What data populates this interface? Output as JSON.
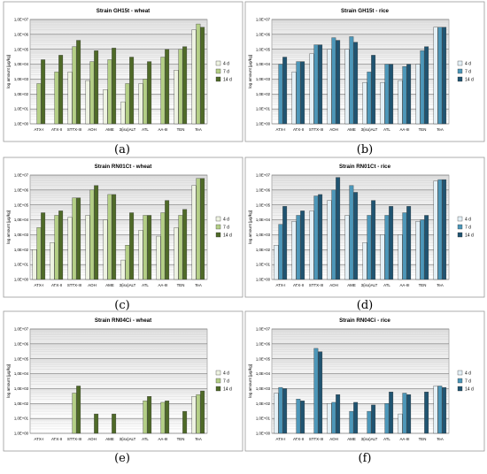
{
  "colors": {
    "wheat": [
      "#eef3e2",
      "#b4cf86",
      "#4f6a28"
    ],
    "rice": [
      "#e4f0f6",
      "#4d97b9",
      "#205471"
    ],
    "grid": "#c8c8c8",
    "plot_bg_top": "#e6e6e6",
    "plot_bg_bottom": "#ffffff"
  },
  "panels": [
    {
      "label": "(a)",
      "chart_data": {
        "type": "bar",
        "title": "Strain GH15t - wheat",
        "ylabel": "log amount [µg/kg]",
        "yscale": "log",
        "ylim_exp": [
          0,
          7
        ],
        "yticks": [
          "1,0E+00",
          "1,0E+01",
          "1,0E+02",
          "1,0E+03",
          "1,0E+04",
          "1,0E+05",
          "1,0E+06",
          "1,0E+07"
        ],
        "categories": [
          "ATX-I",
          "ATX-II",
          "STTX-III",
          "AOH",
          "AME",
          "3(iso)ALT",
          "ATL",
          "AA-III",
          "TEN",
          "TeA"
        ],
        "legend": [
          "4 d",
          "7 d",
          "14 d"
        ],
        "series": [
          {
            "name": "4 d",
            "values": [
              null,
              null,
              3000,
              800,
              200,
              30,
              500,
              null,
              4000,
              2000000
            ]
          },
          {
            "name": "7 d",
            "values": [
              500,
              3000,
              150000,
              15000,
              20000,
              500,
              1000,
              30000,
              100000,
              5000000
            ]
          },
          {
            "name": "14 d",
            "values": [
              20000,
              40000,
              400000,
              80000,
              120000,
              30000,
              15000,
              100000,
              150000,
              3000000
            ]
          }
        ]
      }
    },
    {
      "label": "(b)",
      "chart_data": {
        "type": "bar",
        "title": "Strain GH15t - rice",
        "ylabel": "log amount [µg/kg]",
        "yscale": "log",
        "ylim_exp": [
          0,
          7
        ],
        "yticks": [
          "1,0E+00",
          "1,0E+01",
          "1,0E+02",
          "1,0E+03",
          "1,0E+04",
          "1,0E+05",
          "1,0E+06",
          "1,0E+07"
        ],
        "categories": [
          "ATX-I",
          "ATX-II",
          "STTX-III",
          "AOH",
          "AME",
          "3(iso)ALT",
          "ATL",
          "AA-III",
          "TEN",
          "TeA"
        ],
        "legend": [
          "4 d",
          "7 d",
          "14 d"
        ],
        "series": [
          {
            "name": "4 d",
            "values": [
              null,
              3000,
              50000,
              100000,
              100000,
              600,
              600,
              800,
              10000,
              3000000
            ]
          },
          {
            "name": "7 d",
            "values": [
              10000,
              15000,
              200000,
              600000,
              700000,
              3000,
              10000,
              7000,
              80000,
              3000000
            ]
          },
          {
            "name": "14 d",
            "values": [
              30000,
              15000,
              200000,
              400000,
              300000,
              40000,
              10000,
              10000,
              150000,
              3000000
            ]
          }
        ]
      }
    },
    {
      "label": "(c)",
      "chart_data": {
        "type": "bar",
        "title": "Strain RN01Ct - wheat",
        "ylabel": "log amount [µg/kg]",
        "yscale": "log",
        "ylim_exp": [
          0,
          7
        ],
        "yticks": [
          "1,0E+00",
          "1,0E+01",
          "1,0E+02",
          "1,0E+03",
          "1,0E+04",
          "1,0E+05",
          "1,0E+06",
          "1,0E+07"
        ],
        "categories": [
          "ATX-I",
          "ATX-II",
          "STTX-III",
          "AOH",
          "AME",
          "3(iso)ALT",
          "ATL",
          "AA-III",
          "TEN",
          "TeA"
        ],
        "legend": [
          "4 d",
          "7 d",
          "14 d"
        ],
        "series": [
          {
            "name": "4 d",
            "values": [
              100,
              300,
              15000,
              20000,
              10000,
              20,
              2000,
              800,
              3000,
              2000000
            ]
          },
          {
            "name": "7 d",
            "values": [
              3000,
              20000,
              300000,
              1000000,
              500000,
              200,
              20000,
              30000,
              20000,
              6000000
            ]
          },
          {
            "name": "14 d",
            "values": [
              30000,
              40000,
              300000,
              2000000,
              500000,
              30000,
              20000,
              200000,
              50000,
              6000000
            ]
          }
        ]
      }
    },
    {
      "label": "(d)",
      "chart_data": {
        "type": "bar",
        "title": "Strain RN01Ct - rice",
        "ylabel": "log amount [µg/kg]",
        "yscale": "log",
        "ylim_exp": [
          0,
          7
        ],
        "yticks": [
          "1,0E+00",
          "1,0E+01",
          "1,0E+02",
          "1,0E+03",
          "1,0E+04",
          "1,0E+05",
          "1,0E+06",
          "1,0E+07"
        ],
        "categories": [
          "ATX-I",
          "ATX-II",
          "STTX-III",
          "AOH",
          "AME",
          "3(iso)ALT",
          "ATL",
          "AA-III",
          "TEN",
          "TeA"
        ],
        "legend": [
          "4 d",
          "7 d",
          "14 d"
        ],
        "series": [
          {
            "name": "4 d",
            "values": [
              200,
              8000,
              40000,
              200000,
              20000,
              300,
              1000,
              1000,
              8000,
              4000000
            ]
          },
          {
            "name": "7 d",
            "values": [
              5000,
              20000,
              400000,
              1000000,
              2000000,
              20000,
              20000,
              30000,
              10000,
              5000000
            ]
          },
          {
            "name": "14 d",
            "values": [
              80000,
              40000,
              500000,
              7000000,
              700000,
              200000,
              80000,
              80000,
              20000,
              5000000
            ]
          }
        ]
      }
    },
    {
      "label": "(e)",
      "chart_data": {
        "type": "bar",
        "title": "Strain RN04Ci - wheat",
        "ylabel": "log amount [µg/kg]",
        "yscale": "log",
        "ylim_exp": [
          0,
          7
        ],
        "yticks": [
          "1,0E+00",
          "1,0E+01",
          "1,0E+02",
          "1,0E+03",
          "1,0E+04",
          "1,0E+05",
          "1,0E+06",
          "1,0E+07"
        ],
        "categories": [
          "ATX-I",
          "ATX-II",
          "STTX-III",
          "AOH",
          "AME",
          "3(iso)ALT",
          "ATL",
          "AA-III",
          "TEN",
          "TeA"
        ],
        "legend": [
          "4 d",
          "7 d",
          "14 d"
        ],
        "series": [
          {
            "name": "4 d",
            "values": [
              null,
              null,
              null,
              null,
              null,
              null,
              null,
              null,
              null,
              300
            ]
          },
          {
            "name": "7 d",
            "values": [
              null,
              null,
              500,
              null,
              null,
              null,
              150,
              120,
              null,
              400
            ]
          },
          {
            "name": "14 d",
            "values": [
              null,
              null,
              1500,
              20,
              20,
              null,
              300,
              150,
              30,
              700
            ]
          }
        ]
      }
    },
    {
      "label": "(f)",
      "chart_data": {
        "type": "bar",
        "title": "Strain RN04Ci - rice",
        "ylabel": "log amount [µg/kg]",
        "yscale": "log",
        "ylim_exp": [
          0,
          7
        ],
        "yticks": [
          "1,0E+00",
          "1,0E+01",
          "1,0E+02",
          "1,0E+03",
          "1,0E+04",
          "1,0E+05",
          "1,0E+06",
          "1,0E+07"
        ],
        "categories": [
          "ATX-I",
          "ATX-II",
          "STTX-III",
          "AOH",
          "AME",
          "3(iso)ALT",
          "ATL",
          "AA-III",
          "TEN",
          "TeA"
        ],
        "legend": [
          "4 d",
          "7 d",
          "14 d"
        ],
        "series": [
          {
            "name": "4 d",
            "values": [
              500,
              null,
              null,
              100,
              null,
              null,
              null,
              20,
              null,
              1500
            ]
          },
          {
            "name": "7 d",
            "values": [
              1200,
              200,
              500000,
              120,
              30,
              30,
              100,
              500,
              null,
              1500
            ]
          },
          {
            "name": "14 d",
            "values": [
              1000,
              150,
              300000,
              400,
              120,
              80,
              600,
              400,
              600,
              1200
            ]
          }
        ]
      }
    }
  ]
}
